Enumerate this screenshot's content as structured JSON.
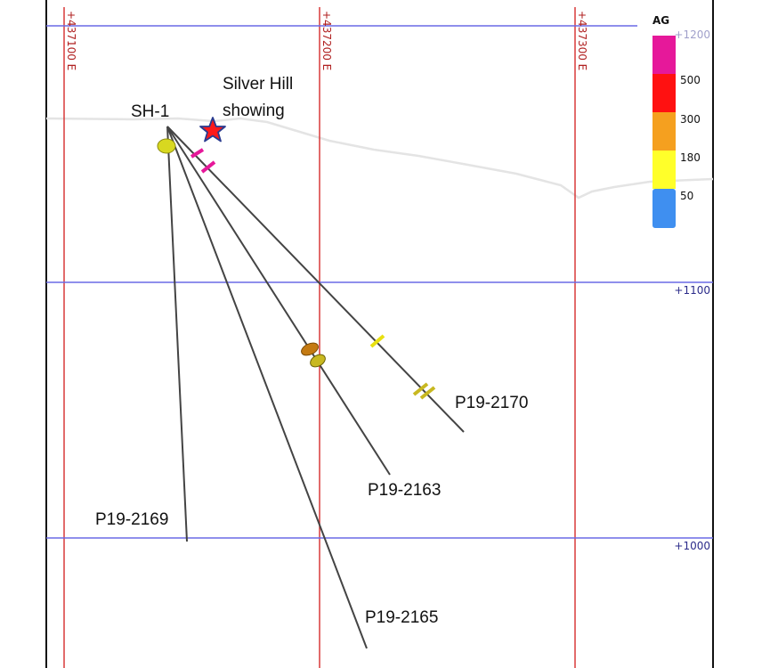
{
  "grid": {
    "easting_labels": [
      "+437100 E",
      "+437200 E",
      "+437300 E"
    ],
    "elevation_labels": [
      "+1200",
      "+1100",
      "+1000"
    ]
  },
  "collar": {
    "label": "SH-1"
  },
  "showing": {
    "label_line1": "Silver Hill",
    "label_line2": "showing",
    "icon": "star-icon"
  },
  "holes": [
    {
      "id": "P19-2169"
    },
    {
      "id": "P19-2165"
    },
    {
      "id": "P19-2163"
    },
    {
      "id": "P19-2170"
    }
  ],
  "legend": {
    "title": "AG",
    "bins": [
      {
        "label": "500",
        "color": "#e6189a"
      },
      {
        "label": "300",
        "color": "#ff1111"
      },
      {
        "label": "180",
        "color": "#f5a01f"
      },
      {
        "label": "50",
        "color": "#ffff2a"
      },
      {
        "label": "",
        "color": "#3f8ff0"
      }
    ]
  },
  "colors": {
    "easting_line": "#d83a3a",
    "elevation_line": "#6a6ae6",
    "drill_trace": "#444444",
    "topography": "#e4e4e4"
  }
}
